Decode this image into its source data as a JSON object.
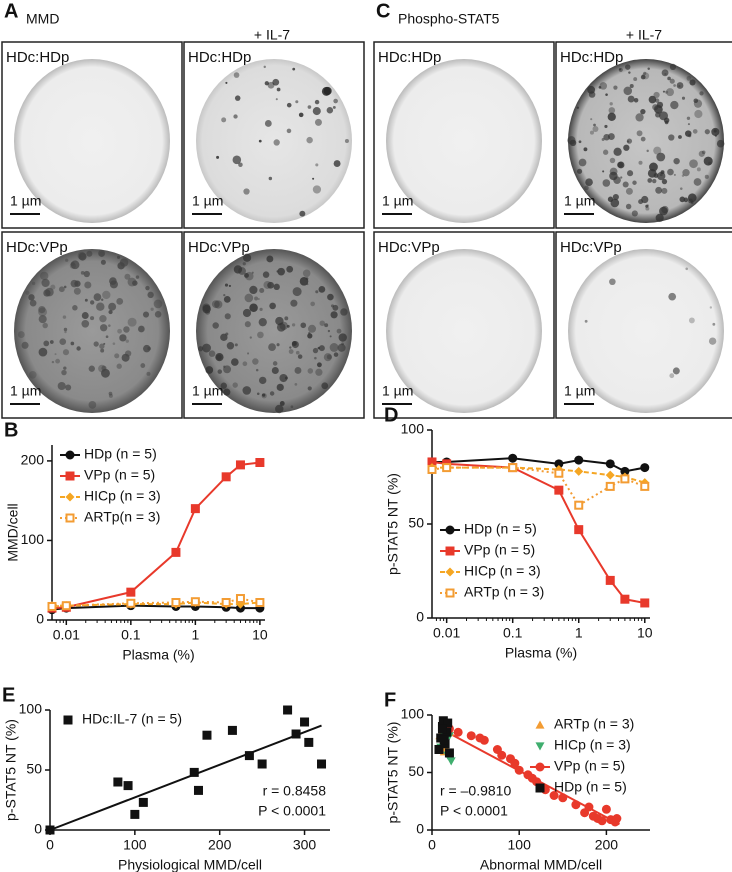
{
  "figure": {
    "panels": [
      {
        "label": "A",
        "title": "MMD",
        "condition": "+ IL-7"
      },
      {
        "label": "C",
        "title": "Phospho-STAT5",
        "condition": "+ IL-7"
      }
    ],
    "tiles": [
      {
        "label": "HDc:HDp",
        "scale": "1 µm"
      },
      {
        "label": "HDc:HDp",
        "scale": "1 µm"
      },
      {
        "label": "HDc:VPp",
        "scale": "1 µm"
      },
      {
        "label": "HDc:VPp",
        "scale": "1 µm"
      },
      {
        "label": "HDc:HDp",
        "scale": "1 µm"
      },
      {
        "label": "HDc:HDp",
        "scale": "1 µm"
      },
      {
        "label": "HDc:VPp",
        "scale": "1 µm"
      },
      {
        "label": "HDc:VPp",
        "scale": "1 µm"
      }
    ]
  },
  "chart_data": [
    {
      "type": "line",
      "panel_label": "B",
      "x_label": "Plasma (%)",
      "y_label": "MMD/cell",
      "xscale": "log",
      "x": [
        0.006,
        0.01,
        0.1,
        0.5,
        1,
        3,
        5,
        10
      ],
      "xlim": [
        0.006,
        12
      ],
      "xticks": [
        0.01,
        0.1,
        1,
        10
      ],
      "ylim": [
        0,
        220
      ],
      "yticks": [
        0,
        100,
        200
      ],
      "legend": "upper left",
      "series": [
        {
          "name": "HDp (n = 5)",
          "color": "#111111",
          "marker": "circle",
          "dash": "solid",
          "values": [
            13,
            15,
            18,
            17,
            17,
            16,
            15,
            15
          ]
        },
        {
          "name": "VPp (n = 5)",
          "color": "#e8392b",
          "marker": "square",
          "dash": "solid",
          "values": [
            15,
            16,
            35,
            85,
            140,
            180,
            195,
            198
          ]
        },
        {
          "name": "HICp (n = 3)",
          "color": "#f5a623",
          "marker": "diamond",
          "dash": "dashed",
          "values": [
            18,
            18,
            20,
            20,
            22,
            20,
            20,
            22
          ]
        },
        {
          "name": "ARTp(n = 3)",
          "color": "#f39c33",
          "marker": "square-open",
          "dash": "dotted",
          "values": [
            17,
            18,
            21,
            22,
            23,
            22,
            27,
            22
          ]
        }
      ]
    },
    {
      "type": "line",
      "panel_label": "D",
      "x_label": "Plasma (%)",
      "y_label": "p-STAT5 NT (%)",
      "xscale": "log",
      "x": [
        0.006,
        0.01,
        0.1,
        0.5,
        1,
        3,
        5,
        10
      ],
      "xlim": [
        0.006,
        12
      ],
      "xticks": [
        0.01,
        0.1,
        1,
        10
      ],
      "ylim": [
        0,
        100
      ],
      "yticks": [
        0,
        50,
        100
      ],
      "legend": "lower left",
      "series": [
        {
          "name": "HDp (n = 5)",
          "color": "#111111",
          "marker": "circle",
          "dash": "solid",
          "values": [
            83,
            83,
            85,
            82,
            84,
            82,
            78,
            80
          ]
        },
        {
          "name": "VPp (n = 5)",
          "color": "#e8392b",
          "marker": "square",
          "dash": "solid",
          "values": [
            83,
            82,
            80,
            68,
            47,
            20,
            10,
            8
          ]
        },
        {
          "name": "HICp (n = 3)",
          "color": "#f5a623",
          "marker": "diamond",
          "dash": "dashed",
          "values": [
            80,
            80,
            80,
            79,
            78,
            76,
            75,
            72
          ]
        },
        {
          "name": "ARTp (n = 3)",
          "color": "#f39c33",
          "marker": "square-open",
          "dash": "dotted",
          "values": [
            79,
            80,
            80,
            77,
            60,
            70,
            74,
            70
          ]
        }
      ]
    },
    {
      "type": "scatter",
      "panel_label": "E",
      "x_label": "Physiological MMD/cell",
      "y_label": "p-STAT5 NT (%)",
      "xlim": [
        0,
        330
      ],
      "xticks": [
        0,
        100,
        200,
        300
      ],
      "ylim": [
        0,
        100
      ],
      "yticks": [
        0,
        50,
        100
      ],
      "legend": "upper left",
      "annotations": [
        "r = 0.8458",
        "P < 0.0001"
      ],
      "annotation_corner": "lower right",
      "fit": {
        "color": "#111111",
        "x": [
          0,
          320
        ],
        "y": [
          0,
          87
        ]
      },
      "series": [
        {
          "name": "HDc:IL-7 (n = 5)",
          "color": "#111111",
          "marker": "square",
          "x": [
            0,
            80,
            92,
            100,
            110,
            170,
            175,
            185,
            215,
            235,
            250,
            280,
            290,
            300,
            305,
            320
          ],
          "values": [
            0,
            40,
            37,
            13,
            23,
            48,
            33,
            79,
            83,
            62,
            55,
            100,
            80,
            90,
            73,
            55
          ]
        }
      ]
    },
    {
      "type": "scatter",
      "panel_label": "F",
      "x_label": "Abnormal MMD/cell",
      "y_label": "p-STAT5 NT (%)",
      "xlim": [
        0,
        250
      ],
      "xticks": [
        0,
        100,
        200
      ],
      "ylim": [
        0,
        100
      ],
      "yticks": [
        0,
        50,
        100
      ],
      "legend": "upper right",
      "annotations": [
        "r = –0.9810",
        "P < 0.0001"
      ],
      "annotation_corner": "lower left",
      "fit": {
        "color": "#e8392b",
        "x": [
          10,
          215
        ],
        "y": [
          88,
          5
        ]
      },
      "series": [
        {
          "name": "ARTp (n = 3)",
          "color": "#f39c33",
          "marker": "triangle",
          "x": [
            9,
            12,
            15,
            17,
            20,
            14,
            16
          ],
          "values": [
            82,
            75,
            90,
            70,
            85,
            68,
            88
          ]
        },
        {
          "name": "HICp (n = 3)",
          "color": "#3fae6e",
          "marker": "triangle-down",
          "x": [
            10,
            12,
            15,
            18,
            22,
            14,
            20
          ],
          "values": [
            72,
            85,
            78,
            65,
            60,
            90,
            82
          ]
        },
        {
          "name": "VPp (n = 5)",
          "color": "#e8392b",
          "marker": "circle",
          "legend_line": true,
          "x": [
            20,
            30,
            45,
            55,
            60,
            75,
            80,
            90,
            95,
            100,
            110,
            115,
            120,
            130,
            140,
            150,
            165,
            175,
            180,
            185,
            190,
            195,
            200,
            205,
            210,
            212
          ],
          "values": [
            88,
            85,
            82,
            80,
            78,
            70,
            65,
            62,
            58,
            52,
            48,
            45,
            42,
            35,
            30,
            28,
            22,
            15,
            20,
            12,
            10,
            8,
            18,
            9,
            7,
            10
          ]
        },
        {
          "name": "HDp (n = 5)",
          "color": "#111111",
          "marker": "square",
          "x": [
            8,
            10,
            12,
            13,
            15,
            17,
            18,
            20,
            12,
            14
          ],
          "values": [
            70,
            80,
            90,
            95,
            75,
            85,
            93,
            67,
            88,
            78
          ]
        }
      ]
    }
  ]
}
